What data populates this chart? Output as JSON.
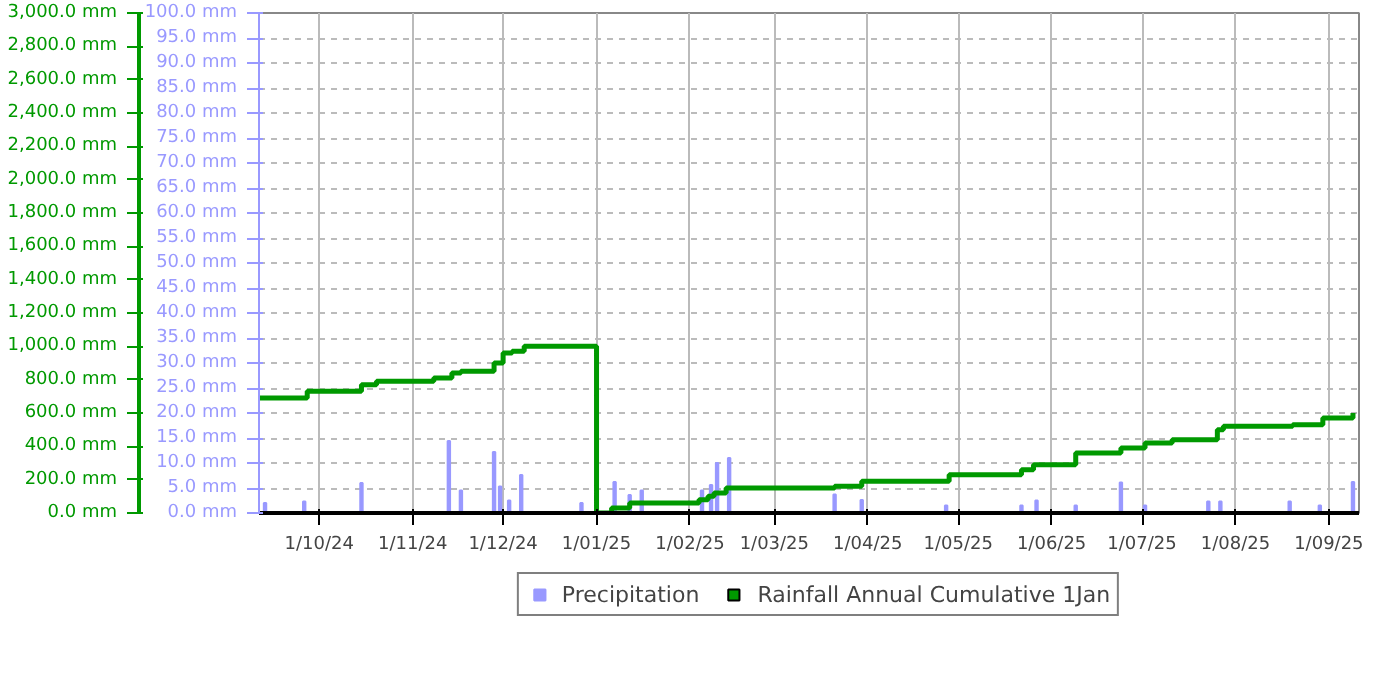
{
  "chart_data": {
    "type": "bar",
    "xlim": [
      "2024-09-11",
      "2025-09-11"
    ],
    "xticks": [
      {
        "value": "2024-10-01",
        "label": "1/10/24"
      },
      {
        "value": "2024-11-01",
        "label": "1/11/24"
      },
      {
        "value": "2024-12-01",
        "label": "1/12/24"
      },
      {
        "value": "2025-01-01",
        "label": "1/01/25"
      },
      {
        "value": "2025-02-01",
        "label": "1/02/25"
      },
      {
        "value": "2025-03-01",
        "label": "1/03/25"
      },
      {
        "value": "2025-04-01",
        "label": "1/04/25"
      },
      {
        "value": "2025-05-01",
        "label": "1/05/25"
      },
      {
        "value": "2025-06-01",
        "label": "1/06/25"
      },
      {
        "value": "2025-07-01",
        "label": "1/07/25"
      },
      {
        "value": "2025-08-01",
        "label": "1/08/25"
      },
      {
        "value": "2025-09-01",
        "label": "1/09/25"
      }
    ],
    "ylim": [
      0,
      100
    ],
    "yticks": [
      {
        "value": 0,
        "label": "0.0 mm"
      },
      {
        "value": 5,
        "label": "5.0 mm"
      },
      {
        "value": 10,
        "label": "10.0 mm"
      },
      {
        "value": 15,
        "label": "15.0 mm"
      },
      {
        "value": 20,
        "label": "20.0 mm"
      },
      {
        "value": 25,
        "label": "25.0 mm"
      },
      {
        "value": 30,
        "label": "30.0 mm"
      },
      {
        "value": 35,
        "label": "35.0 mm"
      },
      {
        "value": 40,
        "label": "40.0 mm"
      },
      {
        "value": 45,
        "label": "45.0 mm"
      },
      {
        "value": 50,
        "label": "50.0 mm"
      },
      {
        "value": 55,
        "label": "55.0 mm"
      },
      {
        "value": 60,
        "label": "60.0 mm"
      },
      {
        "value": 65,
        "label": "65.0 mm"
      },
      {
        "value": 70,
        "label": "70.0 mm"
      },
      {
        "value": 75,
        "label": "75.0 mm"
      },
      {
        "value": 80,
        "label": "80.0 mm"
      },
      {
        "value": 85,
        "label": "85.0 mm"
      },
      {
        "value": 90,
        "label": "90.0 mm"
      },
      {
        "value": 95,
        "label": "95.0 mm"
      },
      {
        "value": 100,
        "label": "100.0 mm"
      }
    ],
    "y2lim": [
      0,
      3000
    ],
    "y2ticks": [
      {
        "value": 0,
        "label": "0.0 mm"
      },
      {
        "value": 200,
        "label": "200.0 mm"
      },
      {
        "value": 400,
        "label": "400.0 mm"
      },
      {
        "value": 600,
        "label": "600.0 mm"
      },
      {
        "value": 800,
        "label": "800.0 mm"
      },
      {
        "value": 1000,
        "label": "1,000.0 mm"
      },
      {
        "value": 1200,
        "label": "1,200.0 mm"
      },
      {
        "value": 1400,
        "label": "1,400.0 mm"
      },
      {
        "value": 1600,
        "label": "1,600.0 mm"
      },
      {
        "value": 1800,
        "label": "1,800.0 mm"
      },
      {
        "value": 2000,
        "label": "2,000.0 mm"
      },
      {
        "value": 2200,
        "label": "2,200.0 mm"
      },
      {
        "value": 2400,
        "label": "2,400.0 mm"
      },
      {
        "value": 2600,
        "label": "2,600.0 mm"
      },
      {
        "value": 2800,
        "label": "2,800.0 mm"
      },
      {
        "value": 3000,
        "label": "3,000.0 mm"
      }
    ],
    "grid": true,
    "legend": "bottom",
    "series": [
      {
        "name": "Precipitation",
        "color": "#9999ff",
        "x": [
          "2024-09-13",
          "2024-09-26",
          "2024-10-15",
          "2024-11-13",
          "2024-11-17",
          "2024-11-28",
          "2024-11-30",
          "2024-12-03",
          "2024-12-07",
          "2024-12-27",
          "2025-01-07",
          "2025-01-12",
          "2025-01-16",
          "2025-02-05",
          "2025-02-08",
          "2025-02-10",
          "2025-02-14",
          "2025-03-21",
          "2025-03-30",
          "2025-04-27",
          "2025-05-22",
          "2025-05-27",
          "2025-06-09",
          "2025-06-24",
          "2025-07-02",
          "2025-07-23",
          "2025-07-27",
          "2025-08-19",
          "2025-08-29",
          "2025-09-09"
        ],
        "values": [
          2,
          2.3,
          6,
          14.4,
          4.5,
          12.2,
          5.3,
          2.5,
          7.6,
          2,
          6.2,
          3.6,
          4.5,
          4.5,
          5.6,
          10,
          11,
          3.7,
          2.6,
          1.5,
          1.5,
          2.5,
          1.5,
          6.1,
          1.5,
          2.3,
          2.3,
          2.3,
          1.5,
          6.2
        ]
      },
      {
        "name": "Rainfall Annual Cumulative 1Jan",
        "type": "step",
        "axis": "y2",
        "color": "#009900",
        "x": [
          "2024-09-11",
          "2024-09-27",
          "2024-10-15",
          "2024-10-20",
          "2024-11-08",
          "2024-11-14",
          "2024-11-17",
          "2024-11-28",
          "2024-12-01",
          "2024-12-04",
          "2024-12-08",
          "2025-01-01",
          "2025-01-06",
          "2025-01-12",
          "2025-02-04",
          "2025-02-07",
          "2025-02-09",
          "2025-02-13",
          "2025-03-21",
          "2025-03-30",
          "2025-04-28",
          "2025-05-22",
          "2025-05-26",
          "2025-06-09",
          "2025-06-24",
          "2025-07-02",
          "2025-07-11",
          "2025-07-26",
          "2025-07-28",
          "2025-08-20",
          "2025-08-30",
          "2025-09-09"
        ],
        "values": [
          690,
          730,
          770,
          790,
          810,
          840,
          850,
          900,
          960,
          970,
          1000,
          0,
          30,
          60,
          80,
          100,
          120,
          150,
          160,
          190,
          230,
          260,
          290,
          360,
          390,
          420,
          440,
          500,
          520,
          530,
          570,
          600
        ]
      }
    ]
  }
}
